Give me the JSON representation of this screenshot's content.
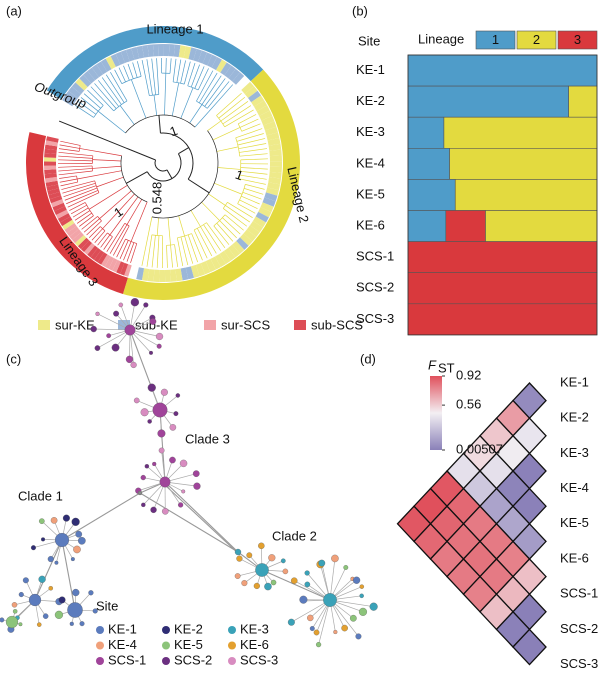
{
  "tree_panel": {
    "label": "(a)",
    "lineages": [
      {
        "name": "Lineage 1",
        "color": "#4f9cc9"
      },
      {
        "name": "Lineage 2",
        "color": "#e3da3f"
      },
      {
        "name": "Lineage 3",
        "color": "#d9393d"
      }
    ],
    "node_labels": [
      "1",
      "1",
      "1",
      "0.548"
    ],
    "outgroup": "Outgroup",
    "legend": [
      {
        "name": "sur-KE",
        "color": "#eeea8a"
      },
      {
        "name": "sub-KE",
        "color": "#9bb7d9"
      },
      {
        "name": "sur-SCS",
        "color": "#f2a4a8"
      },
      {
        "name": "sub-SCS",
        "color": "#dd4d56"
      }
    ]
  },
  "chart_data": [
    {
      "type": "stacked_bar_h",
      "label": "(b)",
      "axis_title": "Site",
      "legend_title": "Lineage",
      "categories": [
        "KE-1",
        "KE-2",
        "KE-3",
        "KE-4",
        "KE-5",
        "KE-6",
        "SCS-1",
        "SCS-2",
        "SCS-3"
      ],
      "series": [
        {
          "name": "1",
          "color": "#4f9cc9",
          "values": [
            100,
            85,
            19,
            22,
            25,
            20,
            0,
            0,
            0
          ]
        },
        {
          "name": "2",
          "color": "#e3da3f",
          "values": [
            0,
            15,
            81,
            78,
            75,
            59,
            0,
            0,
            0
          ]
        },
        {
          "name": "3",
          "color": "#d9393d",
          "values": [
            0,
            0,
            0,
            0,
            0,
            21,
            100,
            100,
            100
          ]
        }
      ],
      "xlim": [
        0,
        100
      ]
    },
    {
      "type": "heatmap",
      "label": "(d)",
      "colorbar_title": {
        "main": "F",
        "sub": "ST"
      },
      "categories": [
        "KE-1",
        "KE-2",
        "KE-3",
        "KE-4",
        "KE-5",
        "KE-6",
        "SCS-1",
        "SCS-2",
        "SCS-3"
      ],
      "values": [
        [],
        [
          0.05
        ],
        [
          0.7,
          0.42
        ],
        [
          0.58,
          0.45,
          0.01
        ],
        [
          0.52,
          0.4,
          0.02,
          0.01
        ],
        [
          0.4,
          0.3,
          0.15,
          0.16,
          0.12
        ],
        [
          0.9,
          0.85,
          0.8,
          0.8,
          0.78,
          0.6
        ],
        [
          0.92,
          0.86,
          0.82,
          0.82,
          0.8,
          0.62,
          0.00507
        ],
        [
          0.9,
          0.85,
          0.8,
          0.8,
          0.78,
          0.6,
          0.01,
          0.00507
        ]
      ],
      "clim": [
        0.00507,
        0.92
      ],
      "cticks": [
        0.92,
        0.56,
        0.00507
      ],
      "colors": [
        "#8a80b8",
        "#f3eff3",
        "#e0505c"
      ]
    }
  ],
  "network_panel": {
    "label": "(c)",
    "clades": [
      "Clade 1",
      "Clade 2",
      "Clade 3"
    ],
    "legend_title": "Site",
    "sites": [
      {
        "name": "KE-1",
        "color": "#5b7bbd"
      },
      {
        "name": "KE-2",
        "color": "#2f2d74"
      },
      {
        "name": "KE-3",
        "color": "#3aa2b8"
      },
      {
        "name": "KE-4",
        "color": "#f0a07a"
      },
      {
        "name": "KE-5",
        "color": "#8cc47a"
      },
      {
        "name": "KE-6",
        "color": "#e3a02f"
      },
      {
        "name": "SCS-1",
        "color": "#a0449a"
      },
      {
        "name": "SCS-2",
        "color": "#6b2f80"
      },
      {
        "name": "SCS-3",
        "color": "#d88cc0"
      }
    ]
  }
}
